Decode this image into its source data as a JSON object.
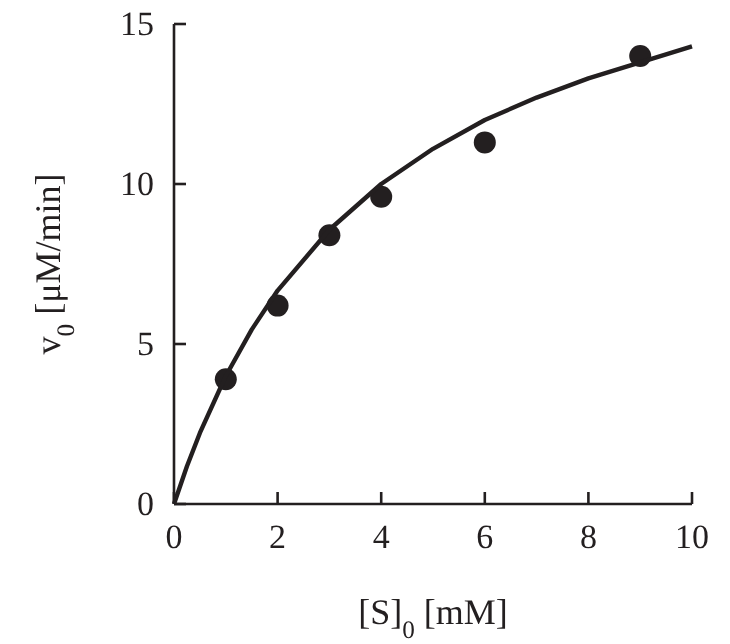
{
  "chart_data": {
    "type": "scatter",
    "xlabel": "[S]$_{0}$ [mM]",
    "ylabel": "v$_{0}$ [μM/min]",
    "xlim": [
      0,
      10
    ],
    "ylim": [
      0,
      15
    ],
    "xticks": [
      0,
      2,
      4,
      6,
      8,
      10
    ],
    "yticks": [
      0,
      5,
      10,
      15
    ],
    "grid": false,
    "marker": "circle",
    "series": [
      {
        "color": "#231f20",
        "x": [
          1,
          2,
          3,
          4,
          6,
          9
        ],
        "values": [
          3.9,
          6.2,
          8.4,
          9.6,
          11.3,
          14.0
        ]
      },
      {
        "type": "line",
        "color": "#231f20",
        "line_style": "solid",
        "marker": "none",
        "x": [
          0,
          0.25,
          0.5,
          1,
          1.5,
          2,
          3,
          4,
          5,
          6,
          7,
          8,
          9,
          10
        ],
        "values": [
          0,
          1.18,
          2.22,
          4.0,
          5.45,
          6.67,
          8.57,
          10,
          11.1,
          12,
          12.7,
          13.3,
          13.8,
          14.3
        ]
      }
    ]
  }
}
